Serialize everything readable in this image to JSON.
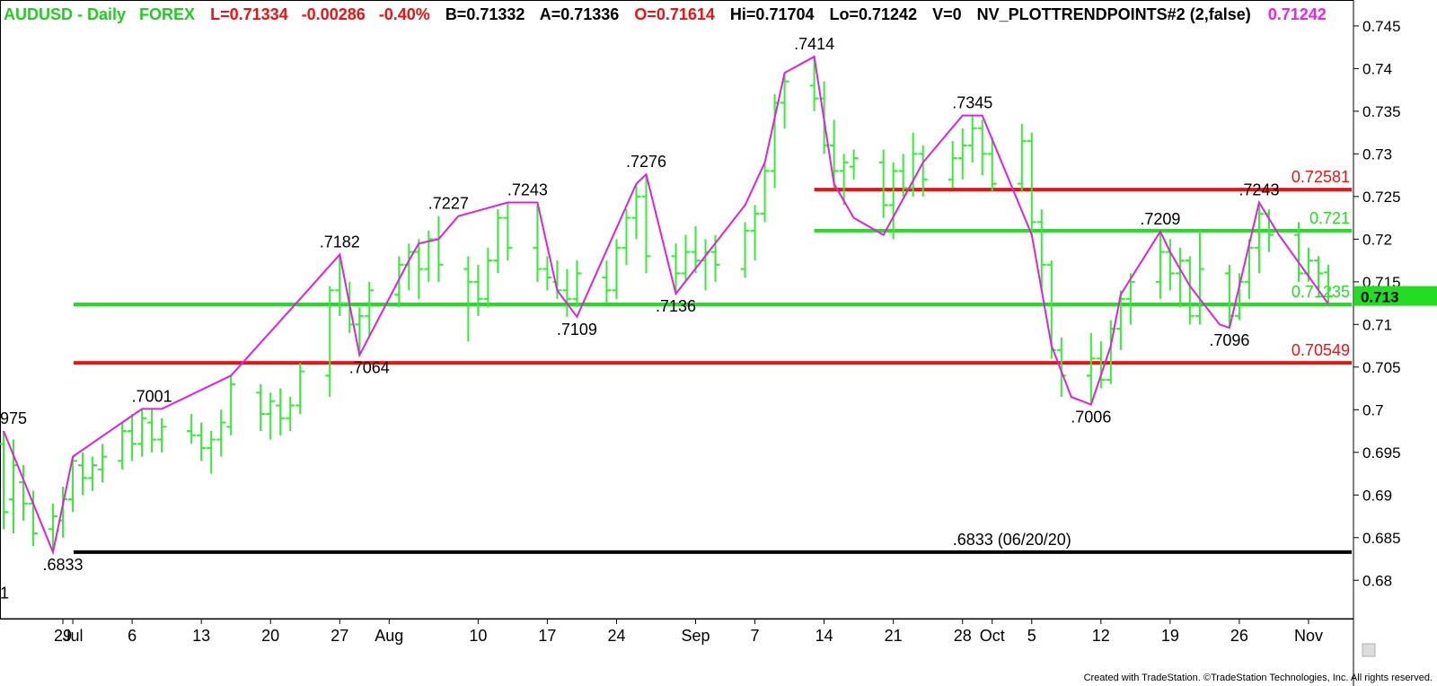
{
  "header": {
    "symbol": "AUDUSD - Daily",
    "market": "FOREX",
    "last": "L=0.71334",
    "change": "-0.00286",
    "change_pct": "-0.40%",
    "bid": "B=0.71332",
    "ask": "A=0.71336",
    "open": "O=0.71614",
    "high": "Hi=0.71704",
    "low": "Lo=0.71242",
    "volume": "V=0",
    "indicator": "NV_PLOTTRENDPOINTS#2 (2,false)",
    "indicator_value": "0.71242"
  },
  "footer": "Created with TradeStation. ©TradeStation Technologies, Inc. All rights reserved.",
  "colors": {
    "bars": "#33ee33",
    "trend": "#e020e0",
    "support": "#ee1111",
    "green_level": "#22dd22",
    "black_level": "#000000",
    "header_green": "#22cc22",
    "header_red": "#ee1111",
    "header_black": "#000000",
    "header_magenta": "#ee22ee",
    "last_marker_bg": "#22dd22"
  },
  "chart_data": {
    "type": "ohlc",
    "y_axis": {
      "range": [
        0.6755,
        0.7472
      ],
      "ticks": [
        "0.745",
        "0.74",
        "0.735",
        "0.73",
        "0.725",
        "0.72",
        "0.715",
        "0.71",
        "0.705",
        "0.7",
        "0.695",
        "0.69",
        "0.685",
        "0.68"
      ],
      "tick_values": [
        0.745,
        0.74,
        0.735,
        0.73,
        0.725,
        0.72,
        0.715,
        0.71,
        0.705,
        0.7,
        0.695,
        0.69,
        0.685,
        0.68
      ],
      "last_price_label": "0.713"
    },
    "x_axis": {
      "labels": [
        {
          "text": "29",
          "day": 0
        },
        {
          "text": "Jul",
          "day": 1
        },
        {
          "text": "6",
          "day": 7
        },
        {
          "text": "13",
          "day": 14
        },
        {
          "text": "20",
          "day": 21
        },
        {
          "text": "27",
          "day": 28
        },
        {
          "text": "Aug",
          "day": 33
        },
        {
          "text": "10",
          "day": 42
        },
        {
          "text": "17",
          "day": 49
        },
        {
          "text": "24",
          "day": 56
        },
        {
          "text": "Sep",
          "day": 64
        },
        {
          "text": "7",
          "day": 70
        },
        {
          "text": "14",
          "day": 77
        },
        {
          "text": "21",
          "day": 84
        },
        {
          "text": "28",
          "day": 91
        },
        {
          "text": "Oct",
          "day": 94
        },
        {
          "text": "5",
          "day": 98
        },
        {
          "text": "12",
          "day": 105
        },
        {
          "text": "19",
          "day": 112
        },
        {
          "text": "26",
          "day": 119
        },
        {
          "text": "Nov",
          "day": 126
        }
      ],
      "first_day": -6,
      "last_day": 129
    },
    "bars": [
      {
        "d": -6,
        "o": 0.696,
        "h": 0.6975,
        "l": 0.686,
        "c": 0.688
      },
      {
        "d": -5,
        "o": 0.6895,
        "h": 0.6965,
        "l": 0.6855,
        "c": 0.6935
      },
      {
        "d": -4,
        "o": 0.6915,
        "h": 0.6935,
        "l": 0.687,
        "c": 0.689
      },
      {
        "d": -3,
        "o": 0.689,
        "h": 0.6905,
        "l": 0.684,
        "c": 0.6855
      },
      {
        "d": -1,
        "o": 0.686,
        "h": 0.689,
        "l": 0.6833,
        "c": 0.6875
      },
      {
        "d": 0,
        "o": 0.687,
        "h": 0.691,
        "l": 0.685,
        "c": 0.6895
      },
      {
        "d": 1,
        "o": 0.6895,
        "h": 0.6945,
        "l": 0.688,
        "c": 0.694
      },
      {
        "d": 2,
        "o": 0.6935,
        "h": 0.695,
        "l": 0.69,
        "c": 0.692
      },
      {
        "d": 3,
        "o": 0.692,
        "h": 0.6945,
        "l": 0.6905,
        "c": 0.6935
      },
      {
        "d": 4,
        "o": 0.693,
        "h": 0.696,
        "l": 0.6915,
        "c": 0.6945
      },
      {
        "d": 6,
        "o": 0.694,
        "h": 0.6985,
        "l": 0.693,
        "c": 0.6975
      },
      {
        "d": 7,
        "o": 0.6975,
        "h": 0.6995,
        "l": 0.694,
        "c": 0.696
      },
      {
        "d": 8,
        "o": 0.696,
        "h": 0.7001,
        "l": 0.6945,
        "c": 0.699
      },
      {
        "d": 9,
        "o": 0.6985,
        "h": 0.7,
        "l": 0.695,
        "c": 0.6965
      },
      {
        "d": 10,
        "o": 0.6965,
        "h": 0.699,
        "l": 0.695,
        "c": 0.698
      },
      {
        "d": 13,
        "o": 0.6975,
        "h": 0.6995,
        "l": 0.696,
        "c": 0.697
      },
      {
        "d": 14,
        "o": 0.697,
        "h": 0.6985,
        "l": 0.694,
        "c": 0.6955
      },
      {
        "d": 15,
        "o": 0.6955,
        "h": 0.6975,
        "l": 0.6925,
        "c": 0.6965
      },
      {
        "d": 16,
        "o": 0.6965,
        "h": 0.7,
        "l": 0.6945,
        "c": 0.6985
      },
      {
        "d": 17,
        "o": 0.698,
        "h": 0.704,
        "l": 0.697,
        "c": 0.703
      },
      {
        "d": 20,
        "o": 0.702,
        "h": 0.703,
        "l": 0.6975,
        "c": 0.6995
      },
      {
        "d": 21,
        "o": 0.6995,
        "h": 0.702,
        "l": 0.6965,
        "c": 0.701
      },
      {
        "d": 22,
        "o": 0.7005,
        "h": 0.7025,
        "l": 0.697,
        "c": 0.699
      },
      {
        "d": 23,
        "o": 0.699,
        "h": 0.7015,
        "l": 0.6975,
        "c": 0.7005
      },
      {
        "d": 24,
        "o": 0.7005,
        "h": 0.7055,
        "l": 0.6995,
        "c": 0.7045
      },
      {
        "d": 27,
        "o": 0.704,
        "h": 0.7145,
        "l": 0.7015,
        "c": 0.714
      },
      {
        "d": 28,
        "o": 0.714,
        "h": 0.7182,
        "l": 0.711,
        "c": 0.7125
      },
      {
        "d": 29,
        "o": 0.7125,
        "h": 0.715,
        "l": 0.709,
        "c": 0.71
      },
      {
        "d": 30,
        "o": 0.71,
        "h": 0.712,
        "l": 0.7064,
        "c": 0.711
      },
      {
        "d": 31,
        "o": 0.711,
        "h": 0.715,
        "l": 0.7085,
        "c": 0.714
      },
      {
        "d": 34,
        "o": 0.7135,
        "h": 0.718,
        "l": 0.712,
        "c": 0.717
      },
      {
        "d": 35,
        "o": 0.717,
        "h": 0.7195,
        "l": 0.714,
        "c": 0.7185
      },
      {
        "d": 36,
        "o": 0.7185,
        "h": 0.72,
        "l": 0.713,
        "c": 0.7165
      },
      {
        "d": 37,
        "o": 0.7165,
        "h": 0.721,
        "l": 0.715,
        "c": 0.72
      },
      {
        "d": 38,
        "o": 0.72,
        "h": 0.7227,
        "l": 0.715,
        "c": 0.717
      },
      {
        "d": 41,
        "o": 0.7165,
        "h": 0.718,
        "l": 0.708,
        "c": 0.715
      },
      {
        "d": 42,
        "o": 0.715,
        "h": 0.717,
        "l": 0.711,
        "c": 0.713
      },
      {
        "d": 43,
        "o": 0.713,
        "h": 0.719,
        "l": 0.712,
        "c": 0.7175
      },
      {
        "d": 44,
        "o": 0.7175,
        "h": 0.7235,
        "l": 0.716,
        "c": 0.7225
      },
      {
        "d": 45,
        "o": 0.7225,
        "h": 0.7243,
        "l": 0.7175,
        "c": 0.719
      },
      {
        "d": 48,
        "o": 0.719,
        "h": 0.724,
        "l": 0.715,
        "c": 0.7165
      },
      {
        "d": 49,
        "o": 0.7165,
        "h": 0.718,
        "l": 0.714,
        "c": 0.7155
      },
      {
        "d": 50,
        "o": 0.715,
        "h": 0.7175,
        "l": 0.713,
        "c": 0.714
      },
      {
        "d": 51,
        "o": 0.714,
        "h": 0.7165,
        "l": 0.7109,
        "c": 0.713
      },
      {
        "d": 52,
        "o": 0.713,
        "h": 0.7175,
        "l": 0.712,
        "c": 0.716
      },
      {
        "d": 55,
        "o": 0.7155,
        "h": 0.7175,
        "l": 0.7125,
        "c": 0.714
      },
      {
        "d": 56,
        "o": 0.714,
        "h": 0.72,
        "l": 0.713,
        "c": 0.719
      },
      {
        "d": 57,
        "o": 0.719,
        "h": 0.7235,
        "l": 0.717,
        "c": 0.7225
      },
      {
        "d": 58,
        "o": 0.7225,
        "h": 0.7265,
        "l": 0.72,
        "c": 0.725
      },
      {
        "d": 59,
        "o": 0.725,
        "h": 0.7276,
        "l": 0.716,
        "c": 0.718
      },
      {
        "d": 62,
        "o": 0.718,
        "h": 0.7195,
        "l": 0.7136,
        "c": 0.716
      },
      {
        "d": 63,
        "o": 0.716,
        "h": 0.7205,
        "l": 0.715,
        "c": 0.7185
      },
      {
        "d": 64,
        "o": 0.7185,
        "h": 0.7215,
        "l": 0.716,
        "c": 0.7175
      },
      {
        "d": 65,
        "o": 0.7175,
        "h": 0.72,
        "l": 0.714,
        "c": 0.7185
      },
      {
        "d": 66,
        "o": 0.7185,
        "h": 0.7205,
        "l": 0.715,
        "c": 0.717
      },
      {
        "d": 69,
        "o": 0.7165,
        "h": 0.722,
        "l": 0.7155,
        "c": 0.721
      },
      {
        "d": 70,
        "o": 0.721,
        "h": 0.724,
        "l": 0.7175,
        "c": 0.723
      },
      {
        "d": 71,
        "o": 0.723,
        "h": 0.729,
        "l": 0.722,
        "c": 0.728
      },
      {
        "d": 72,
        "o": 0.728,
        "h": 0.737,
        "l": 0.726,
        "c": 0.736
      },
      {
        "d": 73,
        "o": 0.736,
        "h": 0.7395,
        "l": 0.733,
        "c": 0.7385
      },
      {
        "d": 76,
        "o": 0.738,
        "h": 0.7414,
        "l": 0.735,
        "c": 0.7365
      },
      {
        "d": 77,
        "o": 0.7365,
        "h": 0.7385,
        "l": 0.73,
        "c": 0.731
      },
      {
        "d": 78,
        "o": 0.731,
        "h": 0.734,
        "l": 0.726,
        "c": 0.728
      },
      {
        "d": 79,
        "o": 0.728,
        "h": 0.73,
        "l": 0.724,
        "c": 0.729
      },
      {
        "d": 80,
        "o": 0.7285,
        "h": 0.7305,
        "l": 0.727,
        "c": 0.7295
      },
      {
        "d": 83,
        "o": 0.729,
        "h": 0.7305,
        "l": 0.7225,
        "c": 0.724
      },
      {
        "d": 84,
        "o": 0.724,
        "h": 0.729,
        "l": 0.72,
        "c": 0.728
      },
      {
        "d": 85,
        "o": 0.728,
        "h": 0.73,
        "l": 0.725,
        "c": 0.726
      },
      {
        "d": 86,
        "o": 0.726,
        "h": 0.7325,
        "l": 0.725,
        "c": 0.73
      },
      {
        "d": 87,
        "o": 0.73,
        "h": 0.731,
        "l": 0.725,
        "c": 0.727
      },
      {
        "d": 90,
        "o": 0.727,
        "h": 0.7315,
        "l": 0.726,
        "c": 0.7295
      },
      {
        "d": 91,
        "o": 0.7295,
        "h": 0.733,
        "l": 0.727,
        "c": 0.731
      },
      {
        "d": 92,
        "o": 0.731,
        "h": 0.7345,
        "l": 0.729,
        "c": 0.733
      },
      {
        "d": 93,
        "o": 0.733,
        "h": 0.734,
        "l": 0.7275,
        "c": 0.73
      },
      {
        "d": 94,
        "o": 0.73,
        "h": 0.732,
        "l": 0.7255,
        "c": 0.7265
      },
      {
        "d": 97,
        "o": 0.7265,
        "h": 0.7335,
        "l": 0.7255,
        "c": 0.7315
      },
      {
        "d": 98,
        "o": 0.7315,
        "h": 0.7325,
        "l": 0.7205,
        "c": 0.722
      },
      {
        "d": 99,
        "o": 0.722,
        "h": 0.7235,
        "l": 0.714,
        "c": 0.717
      },
      {
        "d": 100,
        "o": 0.717,
        "h": 0.7175,
        "l": 0.706,
        "c": 0.707
      },
      {
        "d": 101,
        "o": 0.707,
        "h": 0.7085,
        "l": 0.7015,
        "c": 0.704
      },
      {
        "d": 104,
        "o": 0.704,
        "h": 0.709,
        "l": 0.7006,
        "c": 0.706
      },
      {
        "d": 105,
        "o": 0.706,
        "h": 0.708,
        "l": 0.7025,
        "c": 0.7035
      },
      {
        "d": 106,
        "o": 0.7035,
        "h": 0.7105,
        "l": 0.703,
        "c": 0.7095
      },
      {
        "d": 107,
        "o": 0.7095,
        "h": 0.714,
        "l": 0.707,
        "c": 0.713
      },
      {
        "d": 108,
        "o": 0.713,
        "h": 0.716,
        "l": 0.71,
        "c": 0.715
      },
      {
        "d": 111,
        "o": 0.715,
        "h": 0.7209,
        "l": 0.713,
        "c": 0.7185
      },
      {
        "d": 112,
        "o": 0.7185,
        "h": 0.72,
        "l": 0.714,
        "c": 0.716
      },
      {
        "d": 113,
        "o": 0.716,
        "h": 0.719,
        "l": 0.712,
        "c": 0.7175
      },
      {
        "d": 114,
        "o": 0.7175,
        "h": 0.718,
        "l": 0.71,
        "c": 0.711
      },
      {
        "d": 115,
        "o": 0.711,
        "h": 0.721,
        "l": 0.71,
        "c": 0.7165
      },
      {
        "d": 118,
        "o": 0.716,
        "h": 0.717,
        "l": 0.7096,
        "c": 0.711
      },
      {
        "d": 119,
        "o": 0.711,
        "h": 0.716,
        "l": 0.7105,
        "c": 0.715
      },
      {
        "d": 120,
        "o": 0.715,
        "h": 0.72,
        "l": 0.713,
        "c": 0.719
      },
      {
        "d": 121,
        "o": 0.719,
        "h": 0.7243,
        "l": 0.716,
        "c": 0.723
      },
      {
        "d": 122,
        "o": 0.723,
        "h": 0.7235,
        "l": 0.7185,
        "c": 0.7205
      },
      {
        "d": 125,
        "o": 0.7205,
        "h": 0.722,
        "l": 0.715,
        "c": 0.716
      },
      {
        "d": 126,
        "o": 0.716,
        "h": 0.719,
        "l": 0.715,
        "c": 0.7175
      },
      {
        "d": 127,
        "o": 0.7175,
        "h": 0.718,
        "l": 0.7145,
        "c": 0.716
      },
      {
        "d": 128,
        "o": 0.7161,
        "h": 0.717,
        "l": 0.7124,
        "c": 0.7133
      }
    ],
    "trend_points": [
      {
        "d": -6,
        "v": 0.6975
      },
      {
        "d": -1,
        "v": 0.6833
      },
      {
        "d": 1,
        "v": 0.6945
      },
      {
        "d": 6,
        "v": 0.6985
      },
      {
        "d": 8,
        "v": 0.7001
      },
      {
        "d": 10,
        "v": 0.7001
      },
      {
        "d": 17,
        "v": 0.704
      },
      {
        "d": 24,
        "v": 0.713
      },
      {
        "d": 28,
        "v": 0.7182
      },
      {
        "d": 30,
        "v": 0.7064
      },
      {
        "d": 35,
        "v": 0.7175
      },
      {
        "d": 36,
        "v": 0.7195
      },
      {
        "d": 38,
        "v": 0.72
      },
      {
        "d": 40,
        "v": 0.7227
      },
      {
        "d": 45,
        "v": 0.7243
      },
      {
        "d": 48,
        "v": 0.7243
      },
      {
        "d": 50,
        "v": 0.714
      },
      {
        "d": 52,
        "v": 0.7109
      },
      {
        "d": 58,
        "v": 0.7265
      },
      {
        "d": 59,
        "v": 0.7276
      },
      {
        "d": 62,
        "v": 0.7136
      },
      {
        "d": 69,
        "v": 0.724
      },
      {
        "d": 71,
        "v": 0.729
      },
      {
        "d": 73,
        "v": 0.7395
      },
      {
        "d": 76,
        "v": 0.7414
      },
      {
        "d": 78,
        "v": 0.7265
      },
      {
        "d": 80,
        "v": 0.7225
      },
      {
        "d": 83,
        "v": 0.7205
      },
      {
        "d": 87,
        "v": 0.729
      },
      {
        "d": 91,
        "v": 0.7345
      },
      {
        "d": 93,
        "v": 0.7345
      },
      {
        "d": 98,
        "v": 0.7205
      },
      {
        "d": 100,
        "v": 0.7075
      },
      {
        "d": 102,
        "v": 0.7015
      },
      {
        "d": 104,
        "v": 0.7006
      },
      {
        "d": 106,
        "v": 0.7075
      },
      {
        "d": 107,
        "v": 0.7135
      },
      {
        "d": 111,
        "v": 0.7209
      },
      {
        "d": 112,
        "v": 0.7185
      },
      {
        "d": 114,
        "v": 0.7145
      },
      {
        "d": 117,
        "v": 0.71
      },
      {
        "d": 118,
        "v": 0.7096
      },
      {
        "d": 121,
        "v": 0.7243
      },
      {
        "d": 123,
        "v": 0.7205
      },
      {
        "d": 128,
        "v": 0.7124
      }
    ],
    "levels": [
      {
        "value": 0.72581,
        "label": "0.72581",
        "color": "red",
        "from_day": 76
      },
      {
        "value": 0.721,
        "label": "0.721",
        "color": "green",
        "from_day": 76
      },
      {
        "value": 0.71235,
        "label": "0.71235",
        "color": "green",
        "from_day": 0
      },
      {
        "value": 0.70549,
        "label": "0.70549",
        "color": "red",
        "from_day": 0
      },
      {
        "value": 0.6833,
        "label": "",
        "color": "black",
        "from_day": 0
      }
    ],
    "annotations": [
      {
        "text": "975",
        "d": -6,
        "v": 0.6975,
        "pos": "above"
      },
      {
        "text": "1",
        "d": -6,
        "v": 0.68,
        "pos": "below"
      },
      {
        "text": ".6833",
        "d": 0,
        "v": 0.6833,
        "pos": "below"
      },
      {
        "text": ".7001",
        "d": 9,
        "v": 0.7001,
        "pos": "above"
      },
      {
        "text": ".7182",
        "d": 28,
        "v": 0.7182,
        "pos": "above"
      },
      {
        "text": ".7064",
        "d": 31,
        "v": 0.7064,
        "pos": "below"
      },
      {
        "text": ".7227",
        "d": 39,
        "v": 0.7227,
        "pos": "above"
      },
      {
        "text": ".7243",
        "d": 47,
        "v": 0.7243,
        "pos": "above"
      },
      {
        "text": ".7109",
        "d": 52,
        "v": 0.7109,
        "pos": "below"
      },
      {
        "text": ".7276",
        "d": 59,
        "v": 0.7276,
        "pos": "above"
      },
      {
        "text": ".7136",
        "d": 62,
        "v": 0.7136,
        "pos": "below"
      },
      {
        "text": ".7414",
        "d": 76,
        "v": 0.7414,
        "pos": "above"
      },
      {
        "text": ".7345",
        "d": 92,
        "v": 0.7345,
        "pos": "above"
      },
      {
        "text": ".7006",
        "d": 104,
        "v": 0.7006,
        "pos": "below"
      },
      {
        "text": ".7209",
        "d": 111,
        "v": 0.7209,
        "pos": "above"
      },
      {
        "text": ".7096",
        "d": 118,
        "v": 0.7096,
        "pos": "below"
      },
      {
        "text": ".7243",
        "d": 121,
        "v": 0.7243,
        "pos": "above"
      },
      {
        "text": ".6833 (06/20/20)",
        "d": 96,
        "v": 0.6833,
        "pos": "above"
      }
    ]
  }
}
